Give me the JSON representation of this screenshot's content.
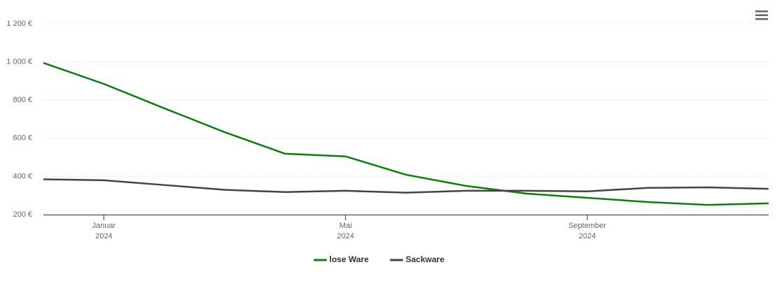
{
  "chart_data": {
    "type": "line",
    "x": [
      "2023-12",
      "2024-01",
      "2024-02",
      "2024-03",
      "2024-04",
      "2024-05",
      "2024-06",
      "2024-07",
      "2024-08",
      "2024-09",
      "2024-10",
      "2024-11",
      "2024-12"
    ],
    "series": [
      {
        "name": "lose Ware",
        "color": "#0a7f0a",
        "values": [
          995,
          885,
          757,
          632,
          519,
          505,
          409,
          350,
          310,
          288,
          266,
          251,
          259
        ]
      },
      {
        "name": "Sackware",
        "color": "#434348",
        "values": [
          385,
          380,
          355,
          330,
          318,
          325,
          315,
          325,
          325,
          322,
          340,
          343,
          335
        ]
      }
    ],
    "xlim": [
      "2023-12",
      "2024-12"
    ],
    "xticks": [
      {
        "value": "2024-01",
        "label": "Januar\n2024"
      },
      {
        "value": "2024-05",
        "label": "Mai\n2024"
      },
      {
        "value": "2024-09",
        "label": "September\n2024"
      }
    ],
    "ylim": [
      200,
      1200
    ],
    "yticks": [
      {
        "value": 200,
        "label": "200 €"
      },
      {
        "value": 400,
        "label": "400 €"
      },
      {
        "value": 600,
        "label": "600 €"
      },
      {
        "value": 800,
        "label": "800 €"
      },
      {
        "value": 1000,
        "label": "1 000 €"
      },
      {
        "value": 1200,
        "label": "1 200 €"
      }
    ],
    "grid": true,
    "legend": "bottom"
  }
}
